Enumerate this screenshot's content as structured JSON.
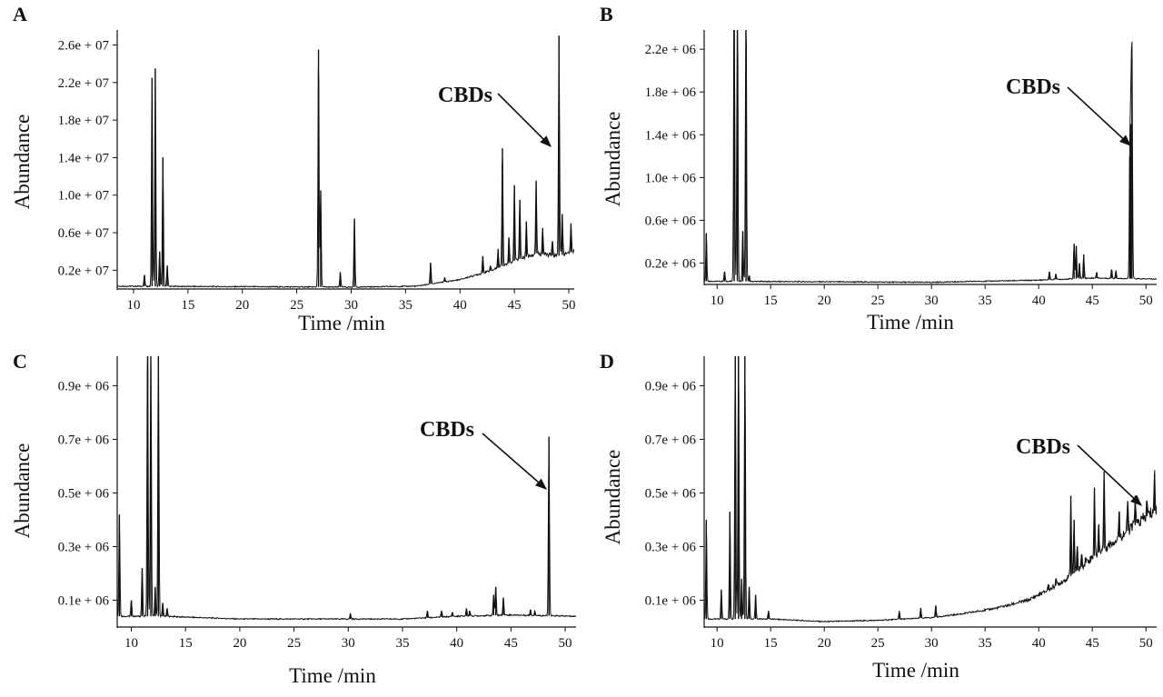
{
  "chart_data": [
    {
      "panel": "A",
      "type": "line",
      "xlabel": "Time /min",
      "ylabel": "Abundance",
      "xlim": [
        8.5,
        50.5
      ],
      "ylim": [
        0,
        27600000
      ],
      "xticks": [
        10,
        15,
        20,
        25,
        30,
        35,
        40,
        45,
        50
      ],
      "xtick_labels": [
        "10",
        "15",
        "20",
        "25",
        "30",
        "35",
        "40",
        "45",
        "50"
      ],
      "yticks": [
        2000000,
        6000000,
        10000000,
        14000000,
        18000000,
        22000000,
        26000000
      ],
      "ytick_labels": [
        "0.2e + 07",
        "0.6e + 07",
        "1.0e + 07",
        "1.4e + 07",
        "1.8e + 07",
        "2.2e + 07",
        "2.6e + 07"
      ],
      "annotation": {
        "text": "CBDs",
        "x": 49.0,
        "y": 15500000
      },
      "baseline": [
        [
          8.5,
          300000
        ],
        [
          30,
          200000
        ],
        [
          36,
          300000
        ],
        [
          40,
          1000000
        ],
        [
          43,
          2000000
        ],
        [
          45,
          3000000
        ],
        [
          47,
          3800000
        ],
        [
          49,
          3500000
        ],
        [
          50.5,
          4000000
        ]
      ],
      "peaks": [
        [
          11.0,
          1500000
        ],
        [
          11.7,
          22500000
        ],
        [
          12.0,
          23500000
        ],
        [
          12.4,
          4000000
        ],
        [
          12.7,
          14000000
        ],
        [
          13.1,
          2500000
        ],
        [
          27.0,
          25500000
        ],
        [
          27.2,
          10500000
        ],
        [
          29.0,
          1800000
        ],
        [
          30.3,
          7500000
        ],
        [
          37.3,
          2800000
        ],
        [
          38.6,
          1200000
        ],
        [
          42.1,
          3500000
        ],
        [
          42.8,
          2500000
        ],
        [
          43.5,
          4200000
        ],
        [
          43.9,
          15000000
        ],
        [
          44.5,
          5500000
        ],
        [
          45.0,
          11000000
        ],
        [
          45.5,
          9500000
        ],
        [
          46.1,
          7200000
        ],
        [
          47.0,
          11500000
        ],
        [
          47.6,
          6500000
        ],
        [
          48.5,
          5000000
        ],
        [
          49.1,
          27000000
        ],
        [
          49.4,
          8000000
        ],
        [
          50.2,
          7000000
        ]
      ]
    },
    {
      "panel": "B",
      "type": "line",
      "xlabel": "Time /min",
      "ylabel": "Abundance",
      "xlim": [
        8.8,
        51.0
      ],
      "ylim": [
        0,
        2380000
      ],
      "xticks": [
        10,
        15,
        20,
        25,
        30,
        35,
        40,
        45,
        50
      ],
      "xtick_labels": [
        "10",
        "15",
        "20",
        "25",
        "30",
        "35",
        "40",
        "45",
        "50"
      ],
      "yticks": [
        200000,
        600000,
        1000000,
        1400000,
        1800000,
        2200000
      ],
      "ytick_labels": [
        "0.2e + 06",
        "0.6e + 06",
        "1.0e + 06",
        "1.4e + 06",
        "1.8e + 06",
        "2.2e + 06"
      ],
      "annotation": {
        "text": "CBDs",
        "x": 48.6,
        "y": 1250000
      },
      "baseline": [
        [
          8.8,
          30000
        ],
        [
          30,
          20000
        ],
        [
          40,
          40000
        ],
        [
          45,
          60000
        ],
        [
          51.0,
          50000
        ]
      ],
      "peaks": [
        [
          9.0,
          480000
        ],
        [
          10.7,
          120000
        ],
        [
          11.6,
          3000000
        ],
        [
          11.9,
          3000000
        ],
        [
          12.4,
          500000
        ],
        [
          12.7,
          3000000
        ],
        [
          13.0,
          80000
        ],
        [
          41.0,
          120000
        ],
        [
          41.6,
          100000
        ],
        [
          43.3,
          380000
        ],
        [
          43.5,
          360000
        ],
        [
          43.8,
          200000
        ],
        [
          44.2,
          280000
        ],
        [
          45.4,
          110000
        ],
        [
          46.8,
          140000
        ],
        [
          47.2,
          130000
        ],
        [
          48.5,
          1200000
        ],
        [
          48.6,
          1500000
        ],
        [
          48.7,
          2100000
        ]
      ]
    },
    {
      "panel": "C",
      "type": "line",
      "xlabel": "Time /min",
      "ylabel": "Abundance",
      "xlim": [
        8.7,
        51.0
      ],
      "ylim": [
        0,
        1010000
      ],
      "xticks": [
        10,
        15,
        20,
        25,
        30,
        35,
        40,
        45,
        50
      ],
      "xtick_labels": [
        "10",
        "15",
        "20",
        "25",
        "30",
        "35",
        "40",
        "45",
        "50"
      ],
      "yticks": [
        100000,
        300000,
        500000,
        700000,
        900000
      ],
      "ytick_labels": [
        "0.1e + 06",
        "0.3e + 06",
        "0.5e + 06",
        "0.7e + 06",
        "0.9e + 06"
      ],
      "annotation": {
        "text": "CBDs",
        "x": 48.5,
        "y": 480000
      },
      "baseline": [
        [
          8.7,
          40000
        ],
        [
          13,
          40000
        ],
        [
          20,
          30000
        ],
        [
          35,
          30000
        ],
        [
          40,
          40000
        ],
        [
          45,
          45000
        ],
        [
          51.0,
          40000
        ]
      ],
      "peaks": [
        [
          8.9,
          420000
        ],
        [
          10.0,
          100000
        ],
        [
          11.0,
          220000
        ],
        [
          11.5,
          1100000
        ],
        [
          11.8,
          1100000
        ],
        [
          12.2,
          150000
        ],
        [
          12.5,
          1100000
        ],
        [
          12.9,
          90000
        ],
        [
          13.3,
          70000
        ],
        [
          30.2,
          50000
        ],
        [
          37.3,
          60000
        ],
        [
          38.6,
          60000
        ],
        [
          39.6,
          55000
        ],
        [
          40.9,
          70000
        ],
        [
          41.2,
          60000
        ],
        [
          43.4,
          120000
        ],
        [
          43.6,
          150000
        ],
        [
          44.3,
          110000
        ],
        [
          46.8,
          65000
        ],
        [
          47.2,
          60000
        ],
        [
          48.5,
          710000
        ]
      ]
    },
    {
      "panel": "D",
      "type": "line",
      "xlabel": "Time /min",
      "ylabel": "Abundance",
      "xlim": [
        8.8,
        51.0
      ],
      "ylim": [
        0,
        1010000
      ],
      "xticks": [
        10,
        15,
        20,
        25,
        30,
        35,
        40,
        45,
        50
      ],
      "xtick_labels": [
        "10",
        "15",
        "20",
        "25",
        "30",
        "35",
        "40",
        "45",
        "50"
      ],
      "yticks": [
        100000,
        300000,
        500000,
        700000,
        900000
      ],
      "ytick_labels": [
        "0.1e + 06",
        "0.3e + 06",
        "0.5e + 06",
        "0.7e + 06",
        "0.9e + 06"
      ],
      "annotation": {
        "text": "CBDs",
        "x": 49.1,
        "y": 450000
      },
      "baseline": [
        [
          8.8,
          30000
        ],
        [
          15,
          30000
        ],
        [
          20,
          20000
        ],
        [
          25,
          25000
        ],
        [
          30,
          35000
        ],
        [
          33,
          50000
        ],
        [
          36,
          70000
        ],
        [
          39,
          100000
        ],
        [
          41,
          140000
        ],
        [
          43,
          190000
        ],
        [
          45,
          260000
        ],
        [
          47,
          320000
        ],
        [
          49,
          380000
        ],
        [
          51.0,
          440000
        ]
      ],
      "peaks": [
        [
          9.0,
          400000
        ],
        [
          10.4,
          140000
        ],
        [
          11.2,
          430000
        ],
        [
          11.7,
          1100000
        ],
        [
          12.0,
          1100000
        ],
        [
          12.3,
          180000
        ],
        [
          12.6,
          1100000
        ],
        [
          13.0,
          150000
        ],
        [
          13.6,
          120000
        ],
        [
          14.8,
          60000
        ],
        [
          27.0,
          60000
        ],
        [
          29.0,
          70000
        ],
        [
          30.4,
          80000
        ],
        [
          37.3,
          80000
        ],
        [
          40.9,
          160000
        ],
        [
          41.6,
          180000
        ],
        [
          43.0,
          490000
        ],
        [
          43.3,
          400000
        ],
        [
          43.6,
          300000
        ],
        [
          44.0,
          270000
        ],
        [
          44.4,
          260000
        ],
        [
          45.2,
          520000
        ],
        [
          45.6,
          380000
        ],
        [
          46.1,
          580000
        ],
        [
          47.5,
          430000
        ],
        [
          48.3,
          470000
        ],
        [
          49.0,
          490000
        ],
        [
          50.1,
          470000
        ],
        [
          50.8,
          570000
        ]
      ]
    }
  ]
}
